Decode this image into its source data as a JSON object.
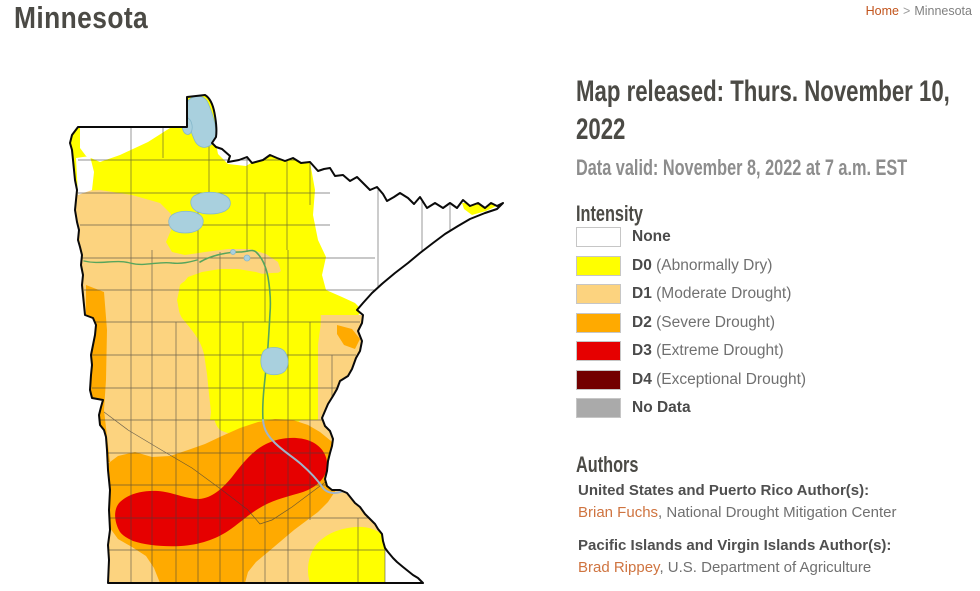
{
  "page": {
    "title": "Minnesota"
  },
  "breadcrumb": {
    "home": "Home",
    "separator": ">",
    "current": "Minnesota"
  },
  "map_info": {
    "released": "Map released: Thurs. November 10, 2022",
    "valid": "Data valid: November 8, 2022 at 7 a.m. EST"
  },
  "legend": {
    "title": "Intensity",
    "items": [
      {
        "code": "",
        "label": "None",
        "color": "#FFFFFF"
      },
      {
        "code": "D0",
        "label": "(Abnormally Dry)",
        "color": "#FFFF00"
      },
      {
        "code": "D1",
        "label": "(Moderate Drought)",
        "color": "#FCD37F"
      },
      {
        "code": "D2",
        "label": "(Severe Drought)",
        "color": "#FFAA00"
      },
      {
        "code": "D3",
        "label": "(Extreme Drought)",
        "color": "#E60000"
      },
      {
        "code": "D4",
        "label": "(Exceptional Drought)",
        "color": "#730000"
      },
      {
        "code": "",
        "label": "No Data",
        "color": "#AAAAAA"
      }
    ]
  },
  "authors": {
    "title": "Authors",
    "groups": [
      {
        "region": "United States and Puerto Rico Author(s):",
        "name": "Brian Fuchs",
        "affiliation": ", National Drought Mitigation Center"
      },
      {
        "region": "Pacific Islands and Virgin Islands Author(s):",
        "name": "Brad Rippey",
        "affiliation": ", U.S. Department of Agriculture"
      }
    ]
  },
  "map": {
    "region": "Minnesota",
    "palette": {
      "none": "#FFFFFF",
      "d0": "#FFFF00",
      "d1": "#FCD37F",
      "d2": "#FFAA00",
      "d3": "#E60000",
      "d4": "#730000",
      "no_data": "#AAAAAA",
      "water": "#A9D0DE",
      "river": "#57A55C",
      "river_lower": "#9FB4CB"
    }
  }
}
